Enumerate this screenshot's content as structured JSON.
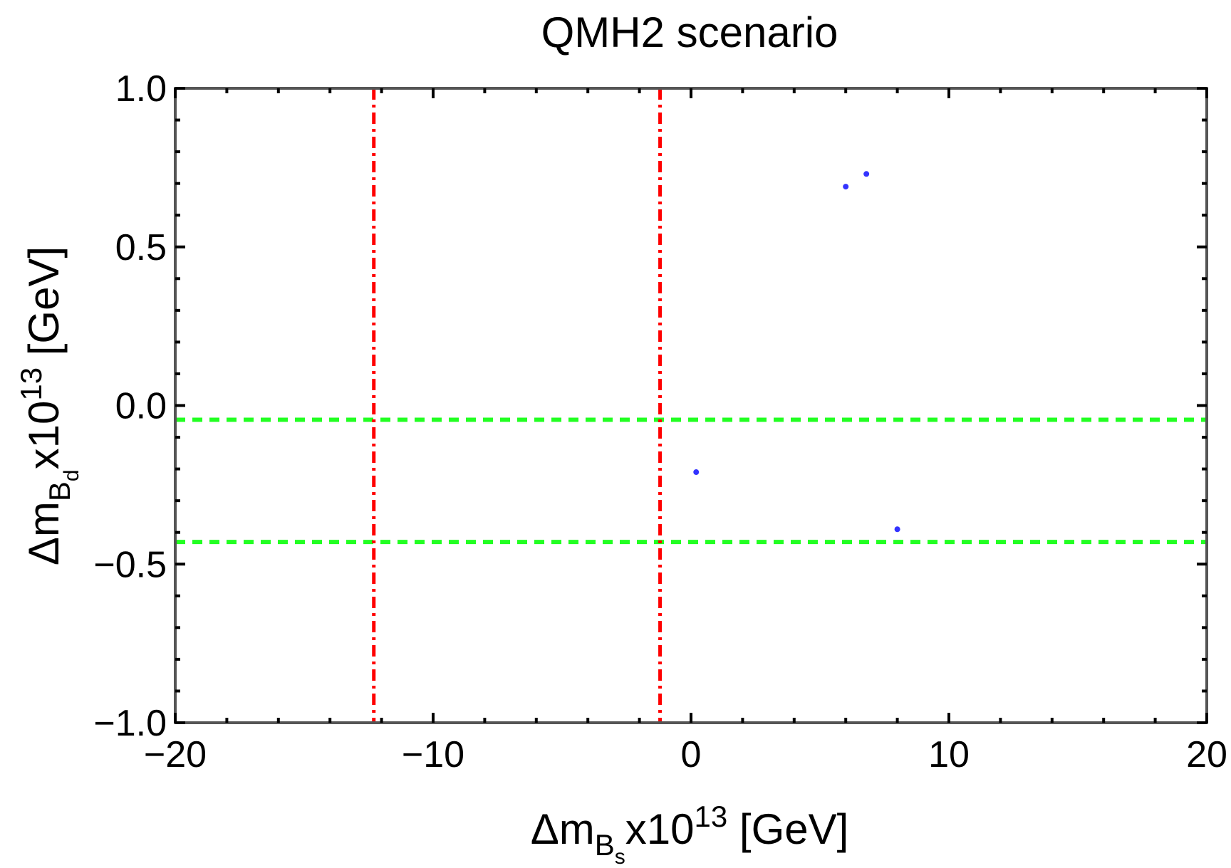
{
  "chart_data": {
    "type": "scatter",
    "title": "QMH2 scenario",
    "xlabel": {
      "prefix": "Δm",
      "subscript": "B",
      "subsubscript": "s",
      "middle": "x10",
      "superscript": "13",
      "suffix": " [GeV]"
    },
    "ylabel": {
      "prefix": "Δm",
      "subscript": "B",
      "subsubscript": "d",
      "middle": "x10",
      "superscript": "13",
      "suffix": " [GeV]"
    },
    "xlim": [
      -20,
      20
    ],
    "ylim": [
      -1.0,
      1.0
    ],
    "xticks": [
      {
        "value": -20,
        "label": "−20"
      },
      {
        "value": -10,
        "label": "−10"
      },
      {
        "value": 0,
        "label": "0"
      },
      {
        "value": 10,
        "label": "10"
      },
      {
        "value": 20,
        "label": "20"
      }
    ],
    "yticks": [
      {
        "value": 1.0,
        "label": "1.0"
      },
      {
        "value": 0.5,
        "label": "0.5"
      },
      {
        "value": 0.0,
        "label": "0.0"
      },
      {
        "value": -0.5,
        "label": "−0.5"
      },
      {
        "value": -1.0,
        "label": "−1.0"
      }
    ],
    "grid": false,
    "points": [
      {
        "x": 6.0,
        "y": 0.69
      },
      {
        "x": 6.8,
        "y": 0.73
      },
      {
        "x": 0.2,
        "y": -0.21
      },
      {
        "x": 8.0,
        "y": -0.39
      }
    ],
    "vertical_lines": [
      {
        "x": -12.3,
        "style": "dash-dot"
      },
      {
        "x": -1.2,
        "style": "dash-dot"
      }
    ],
    "horizontal_lines": [
      {
        "y": -0.045,
        "style": "dashed"
      },
      {
        "y": -0.43,
        "style": "dashed"
      }
    ],
    "colors": {
      "points": "#3333ff",
      "vertical_lines": "#ff0000",
      "horizontal_lines": "#22ff22",
      "frame": "#555555"
    }
  }
}
